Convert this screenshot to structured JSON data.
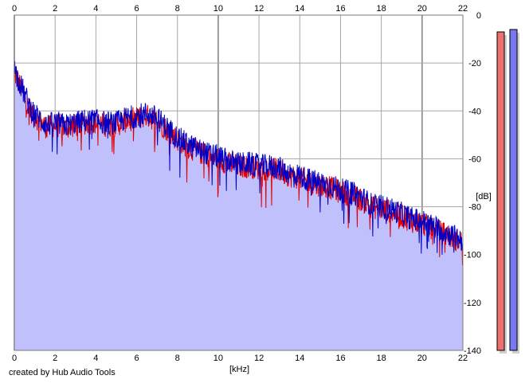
{
  "credit_text": "created by Hub Audio Tools",
  "colors": {
    "background": "#ffffff",
    "plot_fill": "#c0c0fc",
    "grid": "#a6a6a6",
    "grid_major": "#888888",
    "channel_left": "#e00000",
    "channel_right": "#0000c8",
    "meter_left_fill": "#ec7070",
    "meter_right_fill": "#7878f0",
    "meter_shadow": "#cfcfcf"
  },
  "meters": {
    "left_level_db": -7,
    "right_level_db": -6
  },
  "chart_data": {
    "type": "area",
    "title": "",
    "xlabel": "[kHz]",
    "ylabel": "[dB]",
    "xlim": [
      0,
      22
    ],
    "ylim": [
      -140,
      0
    ],
    "x_ticks": [
      "0",
      "2",
      "4",
      "6",
      "8",
      "10",
      "12",
      "14",
      "16",
      "18",
      "20",
      "22"
    ],
    "y_ticks": [
      "0",
      "-20",
      "-40",
      "-60",
      "-80",
      "-100",
      "-120",
      "-140"
    ],
    "grid": true,
    "legend": "none",
    "series": [
      {
        "x": [
          0,
          0.2,
          0.5,
          0.8,
          1.2,
          1.6,
          2.0,
          2.5,
          3.0,
          3.5,
          4.0,
          4.5,
          5.0,
          5.5,
          6.0,
          6.5,
          7.0,
          7.5,
          8.0,
          8.5,
          9.0,
          9.5,
          10.0,
          10.5,
          11.0,
          11.5,
          12.0,
          12.5,
          13.0,
          13.5,
          14.0,
          14.5,
          15.0,
          15.5,
          16.0,
          16.5,
          17.0,
          17.5,
          18.0,
          18.5,
          19.0,
          19.5,
          20.0,
          20.5,
          21.0,
          21.5,
          22.0
        ],
        "values": [
          -24,
          -28,
          -34,
          -40,
          -44,
          -47,
          -46,
          -47,
          -46,
          -45,
          -45,
          -46,
          -46,
          -44,
          -43,
          -42,
          -44,
          -48,
          -52,
          -55,
          -57,
          -59,
          -60,
          -62,
          -63,
          -63,
          -64,
          -64,
          -65,
          -67,
          -68,
          -70,
          -71,
          -72,
          -74,
          -75,
          -77,
          -80,
          -81,
          -82,
          -84,
          -86,
          -87,
          -89,
          -91,
          -93,
          -95
        ]
      },
      {
        "x": [
          0,
          0.2,
          0.5,
          0.8,
          1.2,
          1.6,
          2.0,
          2.5,
          3.0,
          3.5,
          4.0,
          4.5,
          5.0,
          5.5,
          6.0,
          6.5,
          7.0,
          7.5,
          8.0,
          8.5,
          9.0,
          9.5,
          10.0,
          10.5,
          11.0,
          11.5,
          12.0,
          12.5,
          13.0,
          13.5,
          14.0,
          14.5,
          15.0,
          15.5,
          16.0,
          16.5,
          17.0,
          17.5,
          18.0,
          18.5,
          19.0,
          19.5,
          20.0,
          20.5,
          21.0,
          21.5,
          22.0
        ],
        "values": [
          -22,
          -27,
          -33,
          -39,
          -43,
          -46,
          -45,
          -46,
          -45,
          -44,
          -44,
          -45,
          -45,
          -43,
          -42,
          -41,
          -43,
          -47,
          -51,
          -54,
          -56,
          -58,
          -59,
          -61,
          -62,
          -62,
          -63,
          -63,
          -64,
          -66,
          -67,
          -69,
          -70,
          -71,
          -73,
          -74,
          -76,
          -79,
          -80,
          -81,
          -83,
          -85,
          -86,
          -88,
          -90,
          -92,
          -94
        ]
      }
    ]
  }
}
